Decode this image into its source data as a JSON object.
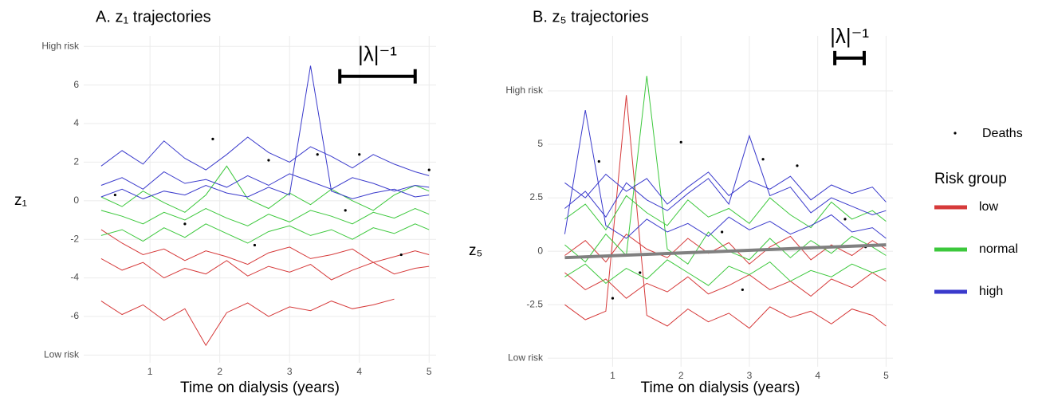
{
  "chart_data": [
    {
      "type": "line",
      "title": "A. z₁ trajectories",
      "xlabel": "Time on dialysis (years)",
      "ylabel": "z₁",
      "xlim": [
        0.05,
        5.1
      ],
      "xticks": [
        1,
        2,
        3,
        4,
        5
      ],
      "ylim": [
        -8.4,
        8.55
      ],
      "yticks": [
        {
          "value": -8,
          "label": "Low risk"
        },
        -6,
        -4,
        -2,
        0,
        2,
        4,
        6,
        {
          "value": 8,
          "label": "High risk"
        }
      ],
      "grid": true,
      "x": [
        0.3,
        0.6,
        0.9,
        1.2,
        1.5,
        1.8,
        2.1,
        2.4,
        2.7,
        3.0,
        3.3,
        3.6,
        3.9,
        4.2,
        4.5,
        4.8,
        5.0
      ],
      "series": [
        {
          "name": "low",
          "color": "#d63a3a",
          "lines": [
            [
              -1.5,
              -2.2,
              -2.8,
              -2.5,
              -3.1,
              -2.6,
              -2.9,
              -3.3,
              -2.7,
              -2.4,
              -3.0,
              -2.8,
              -2.5,
              -3.2,
              -2.9,
              -2.6,
              -2.8
            ],
            [
              -3.0,
              -3.6,
              -3.2,
              -4.0,
              -3.5,
              -3.8,
              -3.1,
              -3.9,
              -3.4,
              -3.7,
              -3.3,
              -4.1,
              -3.6,
              -3.2,
              -3.8,
              -3.5,
              -3.4
            ],
            [
              -5.2,
              -5.9,
              -5.4,
              -6.2,
              -5.6,
              -7.5,
              -5.8,
              -5.3,
              -6.0,
              -5.5,
              -5.7,
              -5.2,
              -5.6,
              -5.4,
              -5.1,
              null,
              null
            ]
          ]
        },
        {
          "name": "normal",
          "color": "#3cc83c",
          "lines": [
            [
              -0.5,
              -0.8,
              -1.2,
              -0.6,
              -1.0,
              -0.4,
              -0.9,
              -1.3,
              -0.7,
              -1.1,
              -0.5,
              -0.8,
              -1.2,
              -0.6,
              -0.9,
              -0.4,
              -0.7
            ],
            [
              0.2,
              -0.3,
              0.5,
              -0.1,
              -0.6,
              0.3,
              1.8,
              0.1,
              -0.4,
              0.4,
              -0.2,
              0.6,
              0.0,
              -0.5,
              0.3,
              0.8,
              0.5
            ],
            [
              -1.8,
              -1.5,
              -2.1,
              -1.4,
              -1.9,
              -1.2,
              -1.7,
              -2.2,
              -1.6,
              -1.3,
              -1.8,
              -1.5,
              -2.0,
              -1.4,
              -1.7,
              -1.2,
              -1.5
            ]
          ]
        },
        {
          "name": "high",
          "color": "#3a3acc",
          "lines": [
            [
              0.8,
              1.2,
              0.6,
              1.5,
              0.9,
              1.1,
              0.7,
              1.3,
              0.8,
              1.4,
              1.0,
              0.6,
              1.2,
              0.9,
              0.5,
              0.8,
              0.7
            ],
            [
              0.2,
              0.6,
              0.1,
              0.5,
              0.3,
              0.8,
              0.4,
              0.2,
              0.7,
              0.3,
              7.0,
              0.5,
              0.1,
              0.4,
              0.6,
              0.2,
              0.3
            ],
            [
              1.8,
              2.6,
              1.9,
              3.1,
              2.2,
              1.6,
              2.4,
              3.3,
              2.5,
              2.0,
              2.8,
              2.3,
              1.7,
              2.4,
              1.9,
              1.5,
              1.3
            ]
          ]
        }
      ],
      "deaths": {
        "name": "Deaths",
        "x": [
          0.5,
          1.9,
          2.7,
          3.4,
          4.0,
          5.0,
          1.5,
          2.5,
          3.8,
          4.6
        ],
        "y": [
          0.3,
          3.2,
          2.1,
          2.4,
          2.4,
          1.6,
          -1.2,
          -2.3,
          -0.5,
          -2.8
        ]
      },
      "scale_bar": {
        "label": "|λ|⁻¹",
        "x": [
          3.72,
          4.8
        ],
        "y": 6.45
      }
    },
    {
      "type": "line",
      "title": "B. z₅ trajectories",
      "xlabel": "Time on dialysis (years)",
      "ylabel": "z₅",
      "xlim": [
        0.05,
        5.1
      ],
      "xticks": [
        1,
        2,
        3,
        4,
        5
      ],
      "ylim": [
        -5.4,
        10.07
      ],
      "yticks": [
        {
          "value": -5,
          "label": "Low risk"
        },
        -2.5,
        0,
        2.5,
        5,
        {
          "value": 7.5,
          "label": "High risk"
        }
      ],
      "grid": true,
      "x": [
        0.3,
        0.6,
        0.9,
        1.2,
        1.5,
        1.8,
        2.1,
        2.4,
        2.7,
        3.0,
        3.3,
        3.6,
        3.9,
        4.2,
        4.5,
        4.8,
        5.0
      ],
      "series": [
        {
          "name": "low",
          "color": "#d63a3a",
          "lines": [
            [
              -1.0,
              -1.8,
              -1.3,
              -2.2,
              -1.5,
              -1.9,
              -1.2,
              -2.0,
              -1.6,
              -1.1,
              -1.8,
              -1.4,
              -2.1,
              -1.3,
              -1.7,
              -1.0,
              -1.4
            ],
            [
              -2.5,
              -3.2,
              -2.8,
              7.3,
              -3.0,
              -3.5,
              -2.7,
              -3.3,
              -2.9,
              -3.6,
              -2.6,
              -3.1,
              -2.8,
              -3.4,
              -2.7,
              -3.0,
              -3.5
            ],
            [
              -0.2,
              0.5,
              -0.5,
              0.8,
              0.1,
              -0.3,
              0.6,
              -0.1,
              0.4,
              -0.6,
              0.2,
              0.7,
              -0.4,
              0.3,
              -0.2,
              0.5,
              0.1
            ]
          ]
        },
        {
          "name": "normal",
          "color": "#3cc83c",
          "lines": [
            [
              0.3,
              -0.5,
              0.8,
              -0.2,
              8.2,
              0.1,
              -0.6,
              0.9,
              0.0,
              -0.4,
              0.6,
              -0.3,
              0.5,
              -0.1,
              0.7,
              0.2,
              -0.2
            ],
            [
              -1.2,
              -0.6,
              -1.5,
              -0.8,
              -1.3,
              -0.4,
              -1.0,
              -1.6,
              -0.7,
              -1.1,
              -0.5,
              -1.4,
              -0.9,
              -1.2,
              -0.6,
              -1.0,
              -0.8
            ],
            [
              1.5,
              2.2,
              1.0,
              2.6,
              1.8,
              1.2,
              2.4,
              1.6,
              2.0,
              1.3,
              2.5,
              1.7,
              1.1,
              2.3,
              1.5,
              1.9,
              1.4
            ]
          ]
        },
        {
          "name": "high",
          "color": "#3a3acc",
          "lines": [
            [
              2.0,
              2.8,
              1.6,
              3.2,
              2.4,
              1.9,
              2.7,
              3.4,
              2.2,
              5.4,
              2.6,
              3.0,
              1.8,
              2.5,
              2.1,
              1.7,
              1.9
            ],
            [
              0.8,
              6.6,
              1.2,
              0.6,
              1.5,
              0.9,
              1.3,
              0.7,
              1.6,
              1.0,
              1.4,
              0.8,
              1.2,
              1.7,
              0.9,
              1.1,
              0.6
            ],
            [
              3.2,
              2.5,
              3.6,
              2.8,
              3.4,
              2.2,
              3.0,
              3.7,
              2.6,
              3.3,
              2.9,
              3.5,
              2.4,
              3.1,
              2.7,
              3.0,
              2.3
            ]
          ]
        }
      ],
      "deaths": {
        "name": "Deaths",
        "x": [
          0.8,
          2.0,
          3.2,
          3.7,
          1.4,
          2.6,
          4.4,
          1.0,
          2.9,
          4.7
        ],
        "y": [
          4.2,
          5.1,
          4.3,
          4.0,
          -1.0,
          0.9,
          1.5,
          -2.2,
          -1.8,
          0.2
        ]
      },
      "trend": {
        "color": "#808080",
        "x": [
          0.3,
          5.0
        ],
        "y": [
          -0.3,
          0.3
        ]
      },
      "scale_bar": {
        "label": "|λ|⁻¹",
        "x": [
          4.25,
          4.68
        ],
        "y": 9.03
      }
    }
  ],
  "legend": {
    "title": "Risk group"
  }
}
